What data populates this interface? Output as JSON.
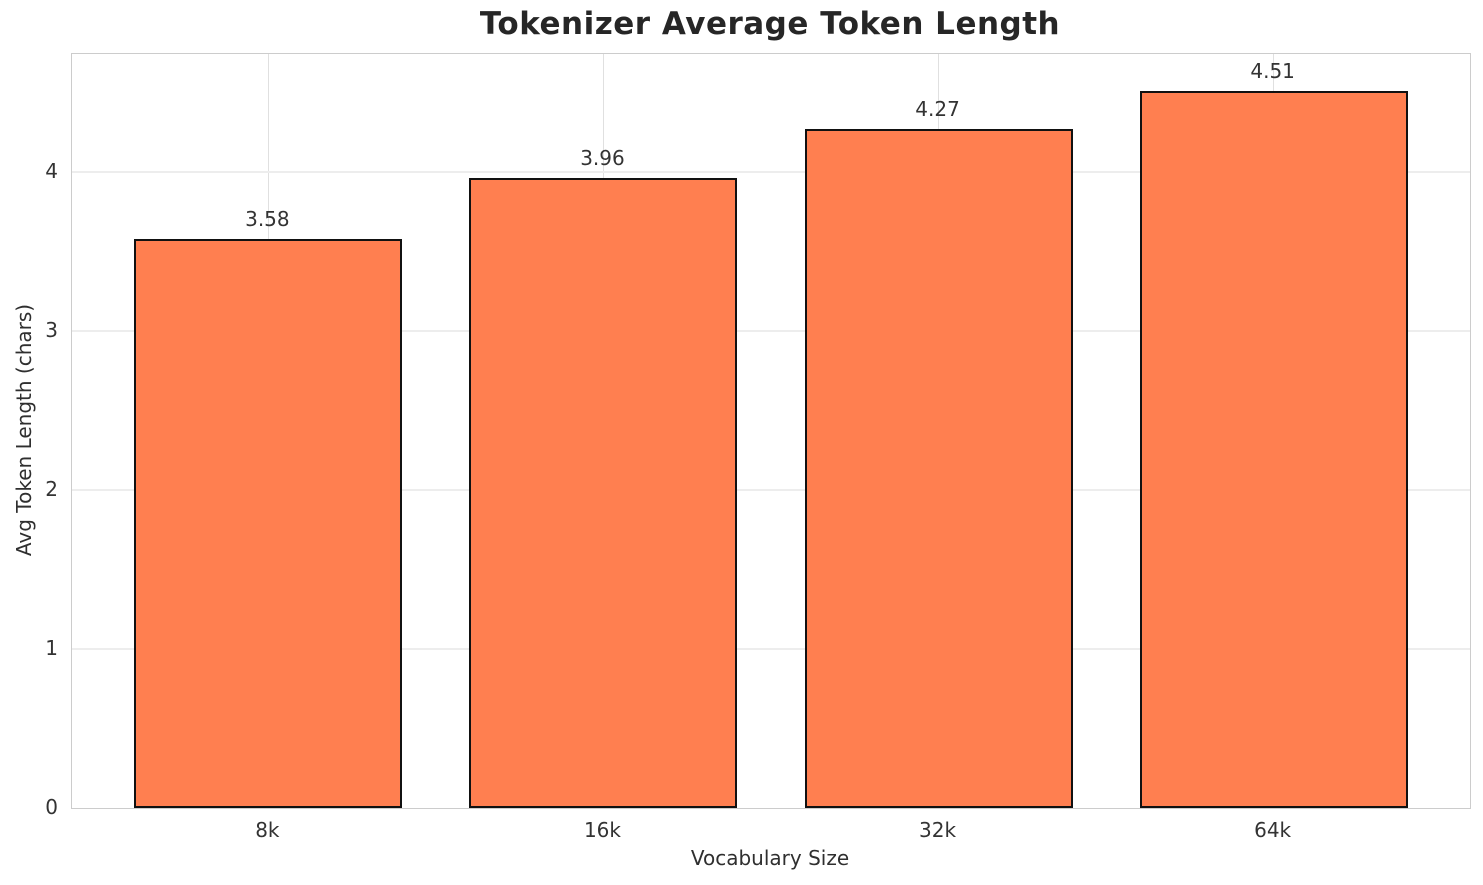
{
  "chart_data": {
    "type": "bar",
    "title": "Tokenizer Average Token Length",
    "xlabel": "Vocabulary Size",
    "ylabel": "Avg Token Length (chars)",
    "categories": [
      "8k",
      "16k",
      "32k",
      "64k"
    ],
    "values": [
      3.58,
      3.96,
      4.27,
      4.51
    ],
    "value_labels": [
      "3.58",
      "3.96",
      "4.27",
      "4.51"
    ],
    "yticks": [
      0,
      1,
      2,
      3,
      4
    ],
    "ylim": [
      0,
      4.74
    ],
    "grid": true,
    "legend_position": "none",
    "colors": {
      "bar_fill": "#FF7F50",
      "bar_edge": "#111111",
      "grid_horizontal": "#ededed",
      "grid_vertical": "#e0e0e0",
      "spine": "#cccccc",
      "title_text": "#262626",
      "tick_text": "#333333",
      "background": "#ffffff"
    }
  }
}
